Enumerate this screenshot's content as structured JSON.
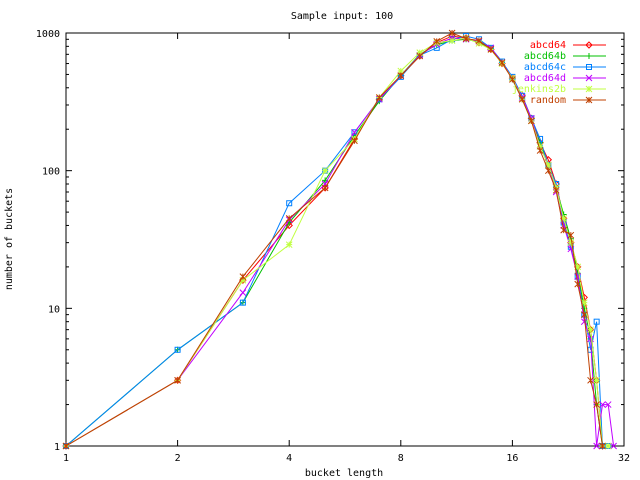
{
  "chart_data": {
    "type": "line",
    "title": "Sample input: 100",
    "xlabel": "bucket length",
    "ylabel": "number of buckets",
    "x_scale": "log2",
    "y_scale": "log10",
    "xlim": [
      1,
      32
    ],
    "ylim": [
      1,
      1000
    ],
    "x_ticks": [
      {
        "value": 1,
        "label": "1"
      },
      {
        "value": 2,
        "label": "2"
      },
      {
        "value": 4,
        "label": "4"
      },
      {
        "value": 8,
        "label": "8"
      },
      {
        "value": 16,
        "label": "16"
      },
      {
        "value": 32,
        "label": "32"
      }
    ],
    "y_ticks": [
      {
        "value": 1,
        "label": "1"
      },
      {
        "value": 10,
        "label": "10"
      },
      {
        "value": 100,
        "label": "100"
      },
      {
        "value": 1000,
        "label": "1000"
      }
    ],
    "grid": false,
    "legend_position": "top-right",
    "series": [
      {
        "name": "abcd64",
        "color": "#ff0000",
        "marker": "diamond",
        "points": [
          [
            1,
            1
          ],
          [
            2,
            3
          ],
          [
            3,
            16
          ],
          [
            4,
            40
          ],
          [
            5,
            75
          ],
          [
            6,
            170
          ],
          [
            7,
            330
          ],
          [
            8,
            490
          ],
          [
            9,
            680
          ],
          [
            10,
            850
          ],
          [
            11,
            950
          ],
          [
            12,
            920
          ],
          [
            13,
            850
          ],
          [
            14,
            760
          ],
          [
            15,
            600
          ],
          [
            16,
            470
          ],
          [
            17,
            350
          ],
          [
            18,
            240
          ],
          [
            19,
            160
          ],
          [
            20,
            120
          ],
          [
            21,
            80
          ],
          [
            22,
            45
          ],
          [
            23,
            30
          ],
          [
            24,
            20
          ],
          [
            25,
            12
          ],
          [
            26,
            7
          ],
          [
            27,
            3
          ],
          [
            28,
            1
          ]
        ]
      },
      {
        "name": "abcd64b",
        "color": "#00c000",
        "marker": "plus",
        "points": [
          [
            1,
            1
          ],
          [
            2,
            5
          ],
          [
            3,
            11
          ],
          [
            4,
            42
          ],
          [
            5,
            85
          ],
          [
            6,
            180
          ],
          [
            7,
            320
          ],
          [
            8,
            490
          ],
          [
            9,
            700
          ],
          [
            10,
            820
          ],
          [
            11,
            880
          ],
          [
            12,
            900
          ],
          [
            13,
            860
          ],
          [
            14,
            770
          ],
          [
            15,
            620
          ],
          [
            16,
            460
          ],
          [
            17,
            330
          ],
          [
            18,
            230
          ],
          [
            19,
            160
          ],
          [
            20,
            110
          ],
          [
            21,
            75
          ],
          [
            22,
            48
          ],
          [
            23,
            32
          ],
          [
            24,
            18
          ],
          [
            25,
            10
          ],
          [
            26,
            6
          ],
          [
            27,
            2
          ],
          [
            28,
            1
          ]
        ]
      },
      {
        "name": "abcd64c",
        "color": "#0080ff",
        "marker": "square",
        "points": [
          [
            1,
            1
          ],
          [
            2,
            5
          ],
          [
            3,
            11
          ],
          [
            4,
            58
          ],
          [
            5,
            100
          ],
          [
            6,
            190
          ],
          [
            7,
            330
          ],
          [
            8,
            480
          ],
          [
            9,
            690
          ],
          [
            10,
            780
          ],
          [
            11,
            900
          ],
          [
            12,
            950
          ],
          [
            13,
            900
          ],
          [
            14,
            780
          ],
          [
            15,
            620
          ],
          [
            16,
            480
          ],
          [
            17,
            350
          ],
          [
            18,
            240
          ],
          [
            19,
            170
          ],
          [
            20,
            110
          ],
          [
            21,
            80
          ],
          [
            22,
            42
          ],
          [
            23,
            28
          ],
          [
            24,
            17
          ],
          [
            25,
            9
          ],
          [
            26,
            5
          ],
          [
            27,
            8
          ],
          [
            28,
            1
          ],
          [
            29,
            1
          ]
        ]
      },
      {
        "name": "abcd64d",
        "color": "#c000ff",
        "marker": "cross",
        "points": [
          [
            1,
            1
          ],
          [
            2,
            3
          ],
          [
            3,
            13
          ],
          [
            4,
            44
          ],
          [
            5,
            80
          ],
          [
            6,
            190
          ],
          [
            7,
            330
          ],
          [
            8,
            490
          ],
          [
            9,
            690
          ],
          [
            10,
            830
          ],
          [
            11,
            920
          ],
          [
            12,
            900
          ],
          [
            13,
            870
          ],
          [
            14,
            780
          ],
          [
            15,
            610
          ],
          [
            16,
            470
          ],
          [
            17,
            340
          ],
          [
            18,
            240
          ],
          [
            19,
            150
          ],
          [
            20,
            110
          ],
          [
            21,
            70
          ],
          [
            22,
            40
          ],
          [
            23,
            27
          ],
          [
            24,
            17
          ],
          [
            25,
            8
          ],
          [
            26,
            6
          ],
          [
            27,
            1
          ],
          [
            28,
            2
          ],
          [
            29,
            2
          ],
          [
            30,
            1
          ]
        ]
      },
      {
        "name": "jenkins2b",
        "color": "#c0ff40",
        "marker": "star",
        "points": [
          [
            1,
            1
          ],
          [
            2,
            3
          ],
          [
            3,
            16
          ],
          [
            4,
            29
          ],
          [
            5,
            100
          ],
          [
            6,
            170
          ],
          [
            7,
            340
          ],
          [
            8,
            530
          ],
          [
            9,
            720
          ],
          [
            10,
            850
          ],
          [
            11,
            880
          ],
          [
            12,
            920
          ],
          [
            13,
            840
          ],
          [
            14,
            760
          ],
          [
            15,
            600
          ],
          [
            16,
            470
          ],
          [
            17,
            330
          ],
          [
            18,
            230
          ],
          [
            19,
            150
          ],
          [
            20,
            110
          ],
          [
            21,
            75
          ],
          [
            22,
            45
          ],
          [
            23,
            30
          ],
          [
            24,
            20
          ],
          [
            25,
            11
          ],
          [
            26,
            7
          ],
          [
            27,
            3
          ],
          [
            28,
            1
          ],
          [
            29,
            1
          ]
        ]
      },
      {
        "name": "random",
        "color": "#c04000",
        "marker": "asterisk",
        "points": [
          [
            1,
            1
          ],
          [
            2,
            3
          ],
          [
            3,
            17
          ],
          [
            4,
            45
          ],
          [
            5,
            75
          ],
          [
            6,
            165
          ],
          [
            7,
            340
          ],
          [
            8,
            490
          ],
          [
            9,
            680
          ],
          [
            10,
            870
          ],
          [
            11,
            1000
          ],
          [
            12,
            910
          ],
          [
            13,
            880
          ],
          [
            14,
            760
          ],
          [
            15,
            610
          ],
          [
            16,
            460
          ],
          [
            17,
            330
          ],
          [
            18,
            230
          ],
          [
            19,
            140
          ],
          [
            20,
            100
          ],
          [
            21,
            72
          ],
          [
            22,
            37
          ],
          [
            23,
            34
          ],
          [
            24,
            15
          ],
          [
            25,
            9
          ],
          [
            26,
            3
          ],
          [
            27,
            2
          ],
          [
            28,
            1
          ]
        ]
      }
    ]
  }
}
